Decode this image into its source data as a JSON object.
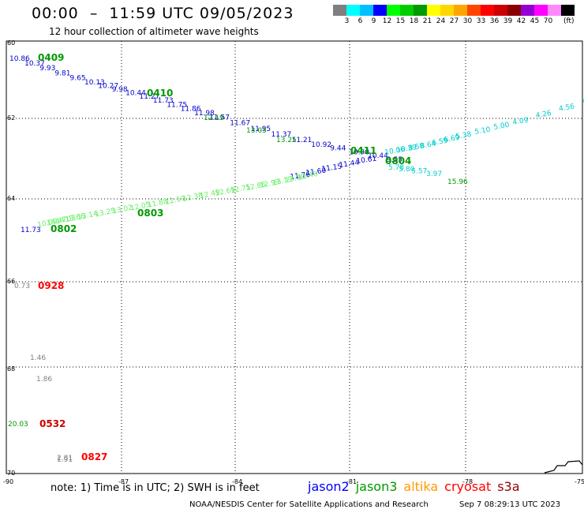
{
  "title": "00:00  –  11:59 UTC 09/05/2023",
  "subtitle": "12 hour collection of altimeter wave heights",
  "scale": {
    "labels": [
      "3",
      "6",
      "9",
      "12",
      "15",
      "18",
      "21",
      "24",
      "27",
      "30",
      "33",
      "36",
      "39",
      "42",
      "45",
      "70"
    ],
    "unit": "(ft)",
    "colors": [
      "#7f7f7f",
      "#00ffff",
      "#00c0ff",
      "#0000ff",
      "#00ff00",
      "#00cc00",
      "#009900",
      "#ffff00",
      "#ffd700",
      "#ffa500",
      "#ff4500",
      "#ff0000",
      "#cc0000",
      "#8b0000",
      "#9400d3",
      "#ff00ff",
      "#ff88ff",
      "#000000"
    ]
  },
  "axes": {
    "lat_ticks": [
      "60",
      "62",
      "64",
      "66",
      "68",
      "70"
    ],
    "lon_ticks": [
      "-90",
      "-87",
      "-84",
      "-81",
      "-78",
      "-75"
    ]
  },
  "pass_labels": [
    {
      "text": "0409",
      "color": "#009900"
    },
    {
      "text": "0410",
      "color": "#009900"
    },
    {
      "text": "0411",
      "color": "#009900"
    },
    {
      "text": "0804",
      "color": "#009900"
    },
    {
      "text": "0802",
      "color": "#009900"
    },
    {
      "text": "0803",
      "color": "#009900"
    },
    {
      "text": "0928",
      "color": "#ff0000"
    },
    {
      "text": "0532",
      "color": "#cc0000"
    },
    {
      "text": "0827",
      "color": "#ff0000"
    }
  ],
  "track_a": {
    "color": "#0000cc",
    "values": [
      "10.86",
      "10.37",
      "9.93",
      "9.81",
      "9.65",
      "10.13",
      "10.27",
      "9.98",
      "10.44",
      "11.27",
      "11.73",
      "11.75",
      "11.86",
      "11.98",
      "11.57",
      "11.67",
      "11.95",
      "11.37",
      "11.21",
      "10.92",
      "9.44",
      "10.90",
      "10.44",
      "9.55"
    ]
  },
  "track_b": {
    "color": "#009900",
    "values": [
      "12.19",
      "13.03",
      "13.25"
    ]
  },
  "track_c": {
    "color": "#00cccc",
    "values": [
      "10.06",
      "10.39",
      "8.58",
      "8.64",
      "6.59",
      "6.69",
      "5.38",
      "5.10",
      "5.00",
      "4.09",
      "4.26",
      "4.56",
      "4.04"
    ]
  },
  "track_d": {
    "color": "#00cccc",
    "values": [
      "5.78",
      "5.80",
      "5.57",
      "3.97"
    ]
  },
  "track_e": {
    "color": "#009900",
    "values": [
      "15.96"
    ]
  },
  "track_f": {
    "color": "#0000cc",
    "values": [
      "11.76",
      "11.60",
      "11.15",
      "11.44",
      "10.61"
    ]
  },
  "track_g": {
    "color": "#66ee66",
    "values": [
      "13.40",
      "13.30",
      "13.19",
      "12.99",
      "12.86",
      "12.75",
      "12.69",
      "12.49",
      "12.38",
      "12.10",
      "11.88",
      "12.05",
      "13.02",
      "13.25",
      "13.14",
      "13.66",
      "14.03",
      "14.47",
      "10.09"
    ]
  },
  "track_h": {
    "color": "#0000cc",
    "values": [
      "11.73"
    ]
  },
  "track_i": {
    "color": "#7f7f7f",
    "values": [
      "0.73",
      "1.46",
      "1.86",
      "2.81",
      "1.91"
    ]
  },
  "track_j": {
    "color": "#009900",
    "values": [
      "20.03"
    ]
  },
  "note": "note: 1) Time is in UTC; 2) SWH is in feet",
  "missions": [
    {
      "name": "jason2",
      "color": "#0000ff"
    },
    {
      "name": "jason3",
      "color": "#009900"
    },
    {
      "name": "altika",
      "color": "#ff9900"
    },
    {
      "name": "cryosat",
      "color": "#ff0000"
    },
    {
      "name": "s3a",
      "color": "#990000"
    }
  ],
  "footer": "NOAA/NESDIS Center for Satellite Applications and Research",
  "footer_time": "Sep  7 08:29:13 UTC 2023"
}
